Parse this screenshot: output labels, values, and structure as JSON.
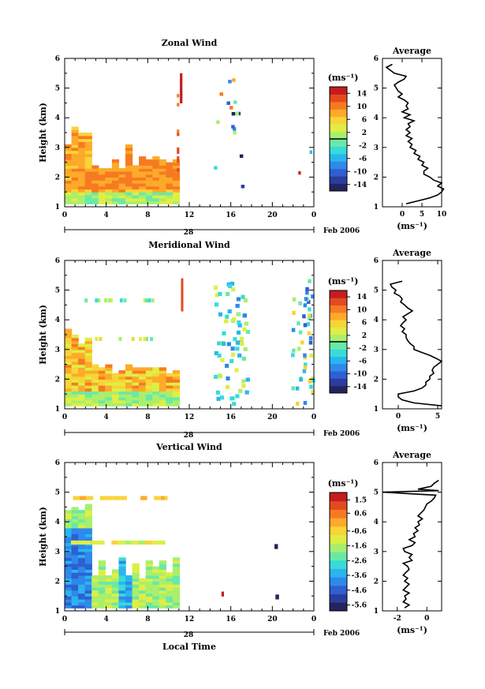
{
  "colorbar_palette": [
    "#23235e",
    "#2b3c9d",
    "#2f5fd0",
    "#2f88ea",
    "#2ab5ee",
    "#37dbd8",
    "#6ae8a8",
    "#a9ef6b",
    "#dfee45",
    "#f8d436",
    "#fdaa2a",
    "#f77a22",
    "#e44a20",
    "#c41d1d"
  ],
  "chart_data": [
    {
      "type": "heatmap",
      "title": "Zonal Wind",
      "ylabel": "Height (km)",
      "ylim": [
        1,
        6
      ],
      "yticks": [
        "1",
        "2",
        "3",
        "4",
        "5",
        "6"
      ],
      "xlim": [
        0,
        24
      ],
      "xticks": [
        "0",
        "4",
        "8",
        "12",
        "16",
        "20",
        "0"
      ],
      "date_day": "28",
      "date_label": "Feb 2006",
      "colorbar_title": "(ms⁻¹)",
      "colorbar_range": [
        -16,
        16
      ],
      "colorbar_ticks": [
        "14",
        "10",
        "6",
        "2",
        "-2",
        "-6",
        "-10",
        "-14"
      ],
      "profile_title": "Average",
      "profile_xlabel": "(ms⁻¹)",
      "profile_xticks": [
        "0",
        "5",
        "10"
      ],
      "profile_xlim": [
        -5,
        10
      ],
      "profile": [
        [
          1.1,
          1
        ],
        [
          1.2,
          4
        ],
        [
          1.3,
          7
        ],
        [
          1.4,
          9
        ],
        [
          1.5,
          10
        ],
        [
          1.6,
          10.5
        ],
        [
          1.7,
          9
        ],
        [
          1.8,
          10
        ],
        [
          1.9,
          8
        ],
        [
          2.0,
          7
        ],
        [
          2.1,
          5.5
        ],
        [
          2.2,
          5.5
        ],
        [
          2.3,
          6.5
        ],
        [
          2.4,
          5
        ],
        [
          2.5,
          5.5
        ],
        [
          2.6,
          4
        ],
        [
          2.7,
          4.5
        ],
        [
          2.8,
          3
        ],
        [
          2.9,
          3.5
        ],
        [
          3.0,
          2
        ],
        [
          3.1,
          2.5
        ],
        [
          3.2,
          1.5
        ],
        [
          3.3,
          2.5
        ],
        [
          3.4,
          1
        ],
        [
          3.5,
          2
        ],
        [
          3.6,
          1
        ],
        [
          3.7,
          2
        ],
        [
          3.8,
          1.5
        ],
        [
          3.9,
          3
        ],
        [
          4.0,
          0.5
        ],
        [
          4.1,
          2
        ],
        [
          4.2,
          0
        ],
        [
          4.3,
          1.5
        ],
        [
          4.4,
          1
        ],
        [
          4.5,
          1.5
        ],
        [
          4.6,
          0.5
        ],
        [
          4.7,
          -1
        ],
        [
          4.8,
          0
        ],
        [
          4.9,
          -1
        ],
        [
          5.0,
          -1.5
        ],
        [
          5.1,
          -2
        ],
        [
          5.2,
          -1
        ],
        [
          5.3,
          0.5
        ],
        [
          5.4,
          1
        ],
        [
          5.5,
          -2
        ],
        [
          5.6,
          -3
        ],
        [
          5.7,
          -4
        ],
        [
          5.8,
          -2.5
        ]
      ]
    },
    {
      "type": "heatmap",
      "title": "Meridional Wind",
      "ylabel": "Height (km)",
      "ylim": [
        1,
        6
      ],
      "yticks": [
        "1",
        "2",
        "3",
        "4",
        "5",
        "6"
      ],
      "xlim": [
        0,
        24
      ],
      "xticks": [
        "0",
        "4",
        "8",
        "12",
        "16",
        "20",
        "0"
      ],
      "date_day": "28",
      "date_label": "Feb 2006",
      "colorbar_title": "(ms⁻¹)",
      "colorbar_range": [
        -16,
        16
      ],
      "colorbar_ticks": [
        "14",
        "10",
        "6",
        "2",
        "-2",
        "-6",
        "-10",
        "-14"
      ],
      "profile_title": "Average",
      "profile_xlabel": "(ms⁻¹)",
      "profile_xticks": [
        "0",
        "5"
      ],
      "profile_xlim": [
        -2,
        5.5
      ],
      "profile": [
        [
          1.1,
          5.5
        ],
        [
          1.2,
          2
        ],
        [
          1.3,
          0.5
        ],
        [
          1.4,
          0
        ],
        [
          1.5,
          0
        ],
        [
          1.6,
          2
        ],
        [
          1.7,
          3
        ],
        [
          1.8,
          3.5
        ],
        [
          1.9,
          3.5
        ],
        [
          2.0,
          4
        ],
        [
          2.1,
          4
        ],
        [
          2.2,
          4.5
        ],
        [
          2.3,
          4.3
        ],
        [
          2.4,
          4.5
        ],
        [
          2.5,
          5
        ],
        [
          2.6,
          5.5
        ],
        [
          2.7,
          4.8
        ],
        [
          2.8,
          4
        ],
        [
          2.9,
          3
        ],
        [
          3.0,
          2
        ],
        [
          3.1,
          2
        ],
        [
          3.2,
          1.5
        ],
        [
          3.3,
          1.2
        ],
        [
          3.4,
          1
        ],
        [
          3.5,
          1
        ],
        [
          3.6,
          0.5
        ],
        [
          3.7,
          0.8
        ],
        [
          3.8,
          0.3
        ],
        [
          3.9,
          0.6
        ],
        [
          4.0,
          1
        ],
        [
          4.1,
          0.6
        ],
        [
          4.2,
          1.2
        ],
        [
          4.3,
          1.8
        ],
        [
          4.4,
          1.2
        ],
        [
          4.5,
          0.8
        ],
        [
          4.6,
          0.3
        ],
        [
          4.7,
          0.5
        ],
        [
          4.8,
          0.2
        ],
        [
          4.9,
          -0.5
        ],
        [
          5.0,
          -0.3
        ],
        [
          5.1,
          -0.8
        ],
        [
          5.2,
          -1
        ],
        [
          5.3,
          0.5
        ]
      ]
    },
    {
      "type": "heatmap",
      "title": "Vertical Wind",
      "ylabel": "Height (km)",
      "xlabel": "Local Time",
      "ylim": [
        1,
        6
      ],
      "yticks": [
        "1",
        "2",
        "3",
        "4",
        "5",
        "6"
      ],
      "xlim": [
        0,
        24
      ],
      "xticks": [
        "0",
        "4",
        "8",
        "12",
        "16",
        "20",
        "0"
      ],
      "date_day": "28",
      "date_label": "Feb 2006",
      "colorbar_title": "(ms⁻¹)",
      "colorbar_range": [
        -6,
        2
      ],
      "colorbar_ticks": [
        "1.5",
        "0.6",
        "-0.6",
        "-1.6",
        "-2.6",
        "-3.6",
        "-4.6",
        "-5.6"
      ],
      "profile_title": "Average",
      "profile_xlabel": "(ms⁻¹)",
      "profile_xticks": [
        "-2",
        "0"
      ],
      "profile_xlim": [
        -3,
        1
      ],
      "profile": [
        [
          1.1,
          -1.5
        ],
        [
          1.2,
          -1.2
        ],
        [
          1.3,
          -1.6
        ],
        [
          1.4,
          -1.4
        ],
        [
          1.5,
          -1.5
        ],
        [
          1.6,
          -1.2
        ],
        [
          1.7,
          -1.6
        ],
        [
          1.8,
          -1.4
        ],
        [
          1.9,
          -1.2
        ],
        [
          2.0,
          -1.5
        ],
        [
          2.1,
          -1.3
        ],
        [
          2.2,
          -1.6
        ],
        [
          2.3,
          -1.4
        ],
        [
          2.4,
          -1.2
        ],
        [
          2.5,
          -1.3
        ],
        [
          2.6,
          -1.6
        ],
        [
          2.7,
          -1
        ],
        [
          2.8,
          -1.2
        ],
        [
          2.9,
          -1
        ],
        [
          3.0,
          -1.5
        ],
        [
          3.1,
          -1.6
        ],
        [
          3.2,
          -1
        ],
        [
          3.3,
          -0.8
        ],
        [
          3.4,
          -1.2
        ],
        [
          3.5,
          -0.8
        ],
        [
          3.6,
          -0.9
        ],
        [
          3.7,
          -0.6
        ],
        [
          3.8,
          -0.8
        ],
        [
          3.9,
          -0.5
        ],
        [
          4.0,
          -0.6
        ],
        [
          4.1,
          -0.3
        ],
        [
          4.2,
          -0.6
        ],
        [
          4.3,
          -0.4
        ],
        [
          4.4,
          -0.2
        ],
        [
          4.5,
          -0.1
        ],
        [
          4.6,
          0
        ],
        [
          4.7,
          0.3
        ],
        [
          4.8,
          0.5
        ],
        [
          4.9,
          0.6
        ],
        [
          5.0,
          -3
        ],
        [
          5.05,
          0.8
        ],
        [
          5.1,
          -0.6
        ],
        [
          5.2,
          0.3
        ],
        [
          5.3,
          0.5
        ],
        [
          5.4,
          0.8
        ]
      ]
    }
  ]
}
